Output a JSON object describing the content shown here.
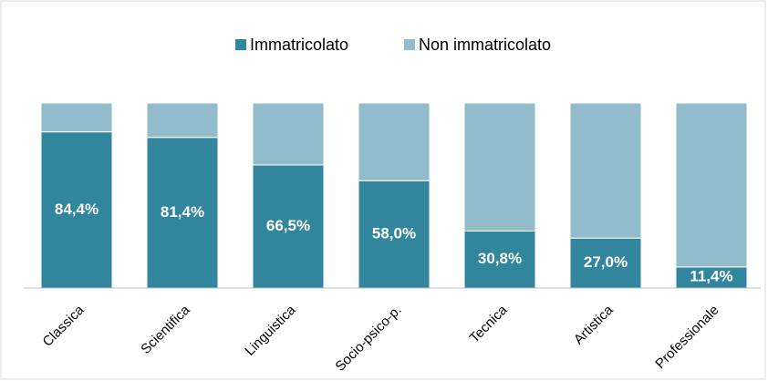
{
  "chart_data": {
    "type": "stacked_bar",
    "categories": [
      "Classica",
      "Scientifica",
      "Linguistica",
      "Socio-psico-p.",
      "Tecnica",
      "Artistica",
      "Professionale"
    ],
    "series": [
      {
        "name": "Immatricolato",
        "color": "#31859c",
        "values": [
          84.4,
          81.4,
          66.5,
          58.0,
          30.8,
          27.0,
          11.4
        ],
        "value_labels": [
          "84,4%",
          "81,4%",
          "66,5%",
          "58,0%",
          "30,8%",
          "27,0%",
          "11,4%"
        ]
      },
      {
        "name": "Non immatricolato",
        "color": "#92bccb",
        "values": [
          15.6,
          18.6,
          33.5,
          42.0,
          69.2,
          73.0,
          88.6
        ]
      }
    ],
    "ylim": [
      0,
      100
    ],
    "legend": "top"
  }
}
